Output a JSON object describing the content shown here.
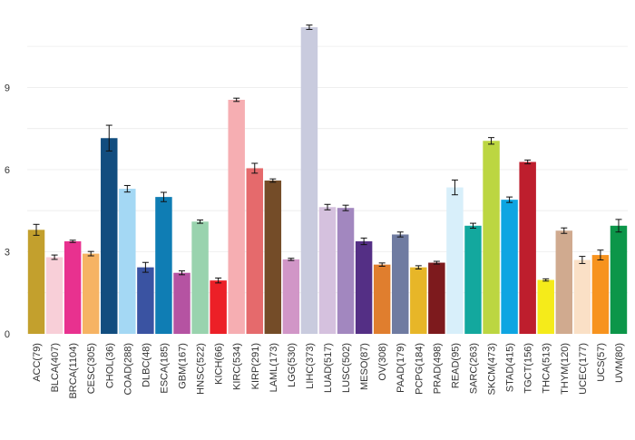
{
  "chart_data": {
    "type": "bar",
    "title": "",
    "xlabel": "",
    "ylabel": "",
    "ylim": [
      0,
      11.4
    ],
    "yticks": [
      0,
      3,
      6,
      9
    ],
    "grid": true,
    "legend": "none",
    "error_bars": true,
    "categories": [
      "ACC(79)",
      "BLCA(407)",
      "BRCA(1104)",
      "CESC(305)",
      "CHOL(36)",
      "COAD(288)",
      "DLBC(48)",
      "ESCA(185)",
      "GBM(167)",
      "HNSC(522)",
      "KICH(66)",
      "KIRC(534)",
      "KIRP(291)",
      "LAML(173)",
      "LGG(530)",
      "LIHC(373)",
      "LUAD(517)",
      "LUSC(502)",
      "MESO(87)",
      "OV(308)",
      "PAAD(179)",
      "PCPG(184)",
      "PRAD(498)",
      "READ(95)",
      "SARC(263)",
      "SKCM(473)",
      "STAD(415)",
      "TGCT(156)",
      "THCA(513)",
      "THYM(120)",
      "UCEC(177)",
      "UCS(57)",
      "UVM(80)"
    ],
    "values": [
      3.8,
      2.8,
      3.38,
      2.93,
      7.15,
      5.3,
      2.43,
      5.0,
      2.23,
      4.1,
      1.95,
      8.55,
      6.05,
      5.6,
      2.72,
      11.2,
      4.63,
      4.6,
      3.38,
      2.53,
      3.63,
      2.43,
      2.6,
      5.35,
      3.95,
      7.05,
      4.9,
      6.28,
      1.97,
      3.77,
      2.7,
      2.88,
      3.95
    ],
    "errors": [
      0.2,
      0.08,
      0.04,
      0.08,
      0.47,
      0.12,
      0.18,
      0.17,
      0.07,
      0.06,
      0.09,
      0.06,
      0.18,
      0.06,
      0.04,
      0.08,
      0.1,
      0.1,
      0.12,
      0.06,
      0.09,
      0.06,
      0.05,
      0.27,
      0.09,
      0.12,
      0.1,
      0.07,
      0.04,
      0.1,
      0.13,
      0.18,
      0.23
    ],
    "colors": [
      "#C3A02D",
      "#F8CFD8",
      "#E8318F",
      "#F6B363",
      "#124D7F",
      "#A4D8F4",
      "#3A53A2",
      "#0F7DB4",
      "#B553A2",
      "#99D3AE",
      "#EC2027",
      "#F6AEB2",
      "#E56A6C",
      "#744C28",
      "#D196C7",
      "#C9CBDE",
      "#D5C1DE",
      "#A287BF",
      "#542F85",
      "#E07E2E",
      "#6F7BA1",
      "#E7B628",
      "#7D1A1D",
      "#D8EFFA",
      "#13A89E",
      "#BCD641",
      "#0EA5E2",
      "#BE1E2D",
      "#F5EB1A",
      "#D0AA8F",
      "#FAE0C6",
      "#F7931E",
      "#0C9649"
    ]
  }
}
